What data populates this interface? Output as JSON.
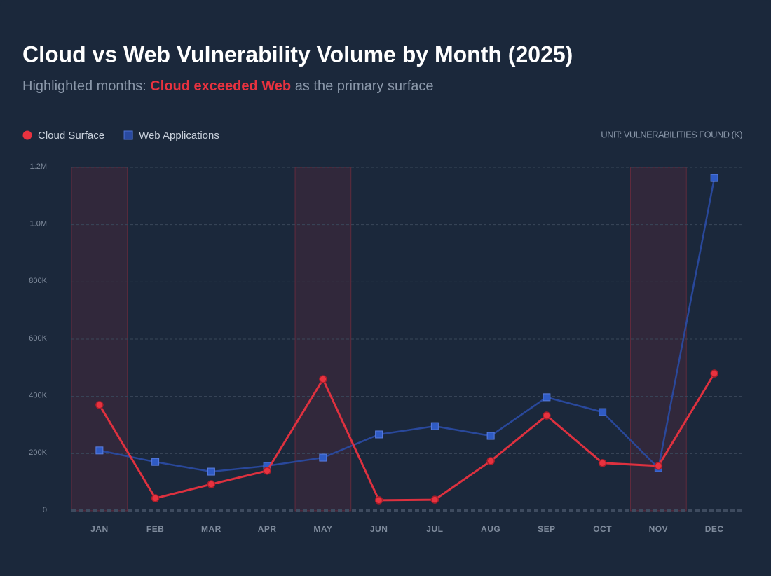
{
  "chart_data": {
    "type": "line",
    "title": "Cloud vs Web Vulnerability Volume by Month (2025)",
    "subtitle": [
      "Highlighted months:",
      "Cloud exceeded Web",
      "as the primary surface"
    ],
    "unit_note": "UNIT: VULNERABILITIES FOUND (K)",
    "categories": [
      "JAN",
      "FEB",
      "MAR",
      "APR",
      "MAY",
      "JUN",
      "JUL",
      "AUG",
      "SEP",
      "OCT",
      "NOV",
      "DEC"
    ],
    "highlight": [
      0,
      4,
      10
    ],
    "series": [
      {
        "name": "Cloud Surface",
        "color": "#e8323f",
        "marker": "circle",
        "values": [
          370000,
          44000,
          93000,
          140000,
          460000,
          37000,
          39000,
          174000,
          333000,
          167000,
          157000,
          480000
        ]
      },
      {
        "name": "Web Applications",
        "color": "#2a4aa0",
        "marker": "square",
        "values": [
          211000,
          171000,
          137000,
          157000,
          186000,
          267000,
          296000,
          262000,
          397000,
          345000,
          149000,
          1163000
        ]
      }
    ],
    "ylim": [
      0,
      1200000
    ],
    "yticks": [
      0,
      {
        "value": 200000,
        "label": "200K"
      },
      {
        "value": 400000,
        "label": "400K"
      },
      {
        "value": 600000,
        "label": "600K"
      },
      {
        "value": 800000,
        "label": "800K"
      },
      {
        "value": 1000000,
        "label": "1.0M"
      },
      {
        "value": 1200000,
        "label": "1.2M"
      }
    ],
    "grid": true
  }
}
